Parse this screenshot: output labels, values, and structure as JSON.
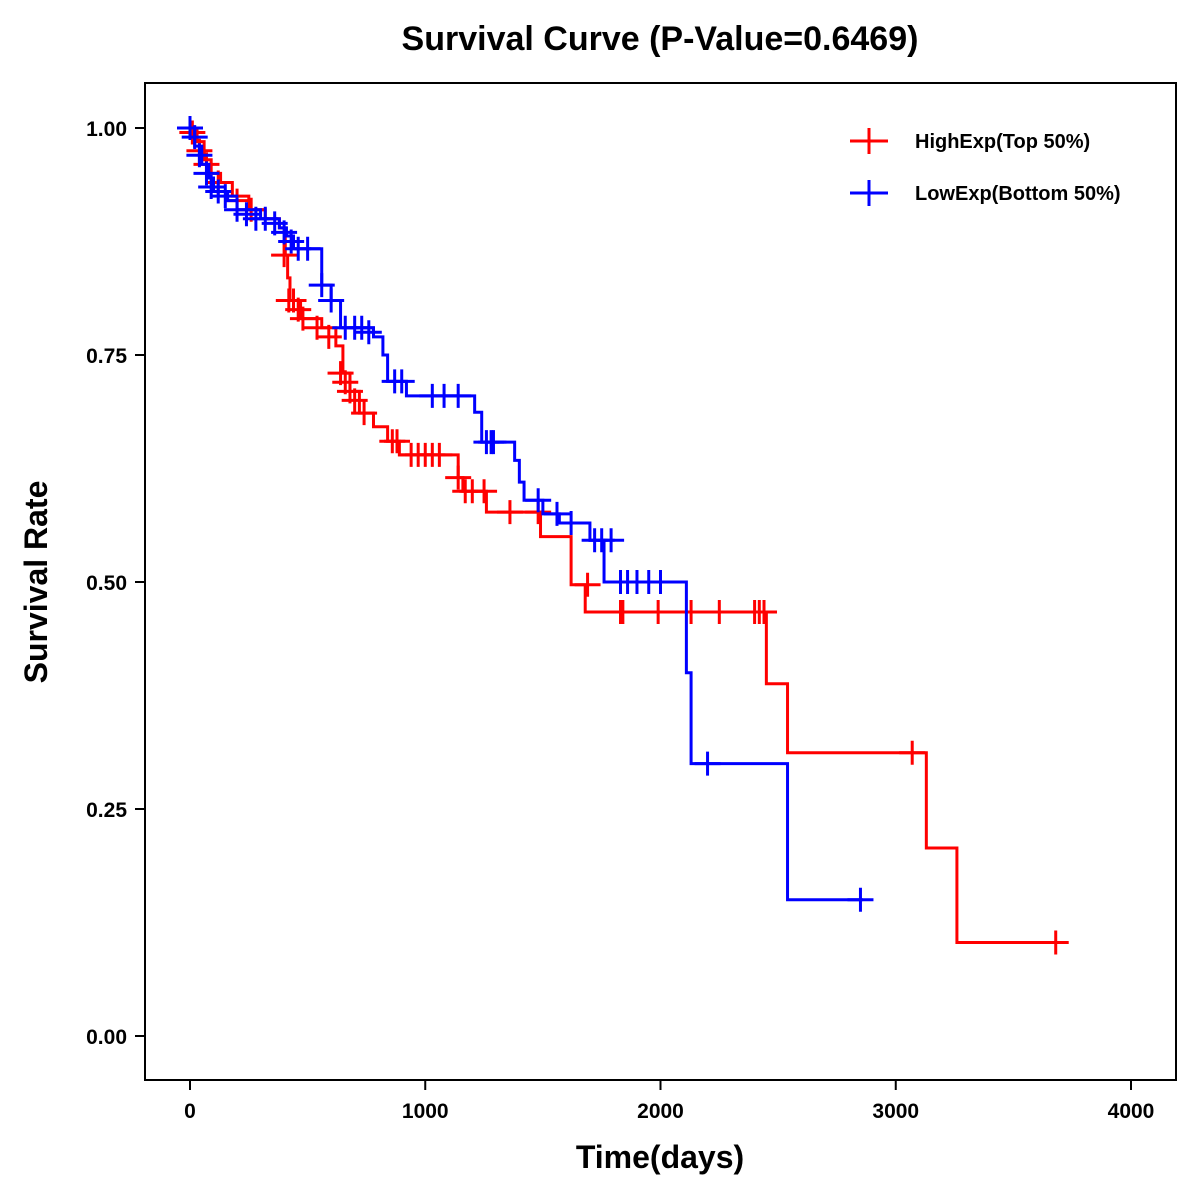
{
  "chart_data": {
    "type": "line",
    "subtype": "kaplan-meier-step",
    "title": "Survival Curve (P-Value=0.6469)",
    "xlabel": "Time(days)",
    "ylabel": "Survival Rate",
    "xlim": [
      -200,
      4200
    ],
    "ylim": [
      -0.05,
      1.05
    ],
    "xticks": [
      0,
      1000,
      2000,
      3000,
      4000
    ],
    "xtick_labels": [
      "0",
      "1000",
      "2000",
      "3000",
      "4000"
    ],
    "yticks": [
      0,
      0.25,
      0.5,
      0.75,
      1.0
    ],
    "ytick_labels": [
      "0.00",
      "0.25",
      "0.50",
      "0.75",
      "1.00"
    ],
    "grid": false,
    "legend_position": "top-right",
    "series": [
      {
        "name": "HighExp(Top 50%)",
        "color": "#FF0000",
        "steps": [
          [
            0,
            1.0
          ],
          [
            30,
            0.985
          ],
          [
            60,
            0.965
          ],
          [
            90,
            0.95
          ],
          [
            130,
            0.94
          ],
          [
            180,
            0.925
          ],
          [
            250,
            0.91
          ],
          [
            320,
            0.9
          ],
          [
            380,
            0.89
          ],
          [
            405,
            0.86
          ],
          [
            415,
            0.835
          ],
          [
            425,
            0.81
          ],
          [
            470,
            0.79
          ],
          [
            560,
            0.78
          ],
          [
            620,
            0.76
          ],
          [
            650,
            0.73
          ],
          [
            680,
            0.71
          ],
          [
            720,
            0.686
          ],
          [
            780,
            0.671
          ],
          [
            840,
            0.655
          ],
          [
            890,
            0.64
          ],
          [
            1140,
            0.615
          ],
          [
            1160,
            0.6
          ],
          [
            1260,
            0.577
          ],
          [
            1490,
            0.55
          ],
          [
            1620,
            0.497
          ],
          [
            1680,
            0.467
          ],
          [
            2450,
            0.388
          ],
          [
            2540,
            0.312
          ],
          [
            3130,
            0.207
          ],
          [
            3260,
            0.103
          ],
          [
            3700,
            0.103
          ]
        ],
        "censored": [
          [
            10,
            0.995
          ],
          [
            40,
            0.975
          ],
          [
            70,
            0.96
          ],
          [
            120,
            0.94
          ],
          [
            200,
            0.92
          ],
          [
            260,
            0.91
          ],
          [
            400,
            0.86
          ],
          [
            420,
            0.81
          ],
          [
            440,
            0.81
          ],
          [
            460,
            0.8
          ],
          [
            480,
            0.79
          ],
          [
            540,
            0.78
          ],
          [
            590,
            0.77
          ],
          [
            640,
            0.73
          ],
          [
            660,
            0.72
          ],
          [
            680,
            0.71
          ],
          [
            700,
            0.7
          ],
          [
            740,
            0.686
          ],
          [
            860,
            0.655
          ],
          [
            880,
            0.655
          ],
          [
            940,
            0.64
          ],
          [
            970,
            0.64
          ],
          [
            1000,
            0.64
          ],
          [
            1030,
            0.64
          ],
          [
            1060,
            0.64
          ],
          [
            1140,
            0.615
          ],
          [
            1170,
            0.6
          ],
          [
            1200,
            0.6
          ],
          [
            1250,
            0.6
          ],
          [
            1360,
            0.577
          ],
          [
            1480,
            0.577
          ],
          [
            1690,
            0.497
          ],
          [
            1830,
            0.467
          ],
          [
            1840,
            0.467
          ],
          [
            1990,
            0.467
          ],
          [
            2130,
            0.467
          ],
          [
            2250,
            0.467
          ],
          [
            2400,
            0.467
          ],
          [
            2420,
            0.467
          ],
          [
            2440,
            0.467
          ],
          [
            3070,
            0.312
          ],
          [
            3680,
            0.103
          ]
        ]
      },
      {
        "name": "LowExp(Bottom 50%)",
        "color": "#0000FF",
        "steps": [
          [
            0,
            1.0
          ],
          [
            20,
            0.98
          ],
          [
            50,
            0.96
          ],
          [
            80,
            0.945
          ],
          [
            100,
            0.93
          ],
          [
            160,
            0.92
          ],
          [
            200,
            0.91
          ],
          [
            300,
            0.9
          ],
          [
            380,
            0.89
          ],
          [
            410,
            0.881
          ],
          [
            440,
            0.867
          ],
          [
            560,
            0.827
          ],
          [
            600,
            0.81
          ],
          [
            640,
            0.78
          ],
          [
            780,
            0.77
          ],
          [
            820,
            0.75
          ],
          [
            840,
            0.721
          ],
          [
            920,
            0.705
          ],
          [
            1210,
            0.687
          ],
          [
            1240,
            0.654
          ],
          [
            1380,
            0.634
          ],
          [
            1400,
            0.61
          ],
          [
            1420,
            0.59
          ],
          [
            1500,
            0.575
          ],
          [
            1570,
            0.565
          ],
          [
            1700,
            0.546
          ],
          [
            1760,
            0.5
          ],
          [
            2110,
            0.4
          ],
          [
            2130,
            0.3
          ],
          [
            2540,
            0.15
          ],
          [
            2860,
            0.15
          ]
        ],
        "censored": [
          [
            0,
            1.0
          ],
          [
            20,
            0.99
          ],
          [
            40,
            0.97
          ],
          [
            70,
            0.95
          ],
          [
            90,
            0.935
          ],
          [
            120,
            0.93
          ],
          [
            150,
            0.925
          ],
          [
            200,
            0.91
          ],
          [
            240,
            0.905
          ],
          [
            280,
            0.9
          ],
          [
            320,
            0.9
          ],
          [
            360,
            0.895
          ],
          [
            400,
            0.885
          ],
          [
            430,
            0.875
          ],
          [
            460,
            0.867
          ],
          [
            500,
            0.867
          ],
          [
            560,
            0.827
          ],
          [
            600,
            0.81
          ],
          [
            660,
            0.78
          ],
          [
            700,
            0.78
          ],
          [
            730,
            0.78
          ],
          [
            760,
            0.775
          ],
          [
            870,
            0.721
          ],
          [
            900,
            0.721
          ],
          [
            1030,
            0.705
          ],
          [
            1080,
            0.705
          ],
          [
            1140,
            0.705
          ],
          [
            1260,
            0.654
          ],
          [
            1280,
            0.654
          ],
          [
            1290,
            0.654
          ],
          [
            1480,
            0.59
          ],
          [
            1560,
            0.575
          ],
          [
            1620,
            0.565
          ],
          [
            1720,
            0.546
          ],
          [
            1750,
            0.546
          ],
          [
            1790,
            0.546
          ],
          [
            1830,
            0.5
          ],
          [
            1860,
            0.5
          ],
          [
            1900,
            0.5
          ],
          [
            1950,
            0.5
          ],
          [
            2000,
            0.5
          ],
          [
            2200,
            0.3
          ],
          [
            2850,
            0.15
          ]
        ]
      }
    ]
  }
}
